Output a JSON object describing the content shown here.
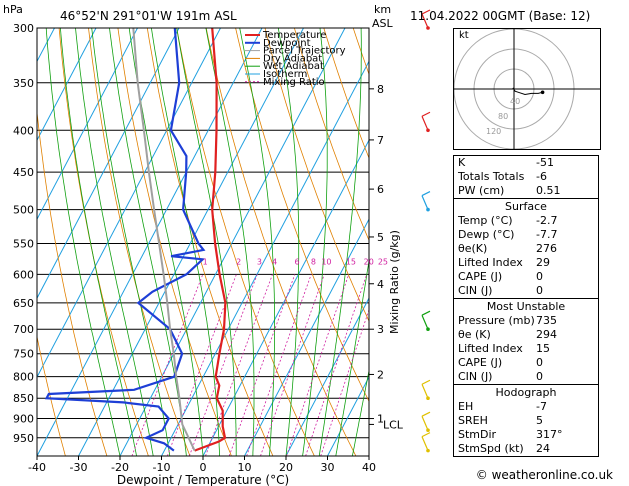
{
  "header": {
    "pressure_unit": "hPa",
    "location": "46°52'N  291°01'W  191m  ASL",
    "height_unit_line1": "km",
    "height_unit_line2": "ASL",
    "datetime": "11.04.2022  00GMT  (Base: 12)"
  },
  "hodograph": {
    "label": "kt",
    "ring_labels": [
      "40",
      "80",
      "120"
    ],
    "trace_kt": [
      [
        -1,
        1
      ],
      [
        1,
        -2
      ],
      [
        4,
        -3
      ],
      [
        10,
        -5
      ],
      [
        16,
        -4
      ],
      [
        22,
        -4
      ],
      [
        26,
        -3
      ]
    ]
  },
  "indices": {
    "rows": [
      {
        "label": "K",
        "value": "-51"
      },
      {
        "label": "Totals Totals",
        "value": "-6"
      },
      {
        "label": "PW (cm)",
        "value": "0.51"
      }
    ]
  },
  "surface": {
    "title": "Surface",
    "rows": [
      {
        "label": "Temp (°C)",
        "value": "-2.7"
      },
      {
        "label": "Dewp (°C)",
        "value": "-7.7"
      },
      {
        "label": "θe(K)",
        "value": "276"
      },
      {
        "label": "Lifted Index",
        "value": "29"
      },
      {
        "label": "CAPE (J)",
        "value": "0"
      },
      {
        "label": "CIN (J)",
        "value": "0"
      }
    ]
  },
  "most_unstable": {
    "title": "Most Unstable",
    "rows": [
      {
        "label": "Pressure (mb)",
        "value": "735"
      },
      {
        "label": "θe (K)",
        "value": "294"
      },
      {
        "label": "Lifted Index",
        "value": "15"
      },
      {
        "label": "CAPE (J)",
        "value": "0"
      },
      {
        "label": "CIN (J)",
        "value": "0"
      }
    ]
  },
  "hodograph_indices": {
    "title": "Hodograph",
    "rows": [
      {
        "label": "EH",
        "value": "-7"
      },
      {
        "label": "SREH",
        "value": "5"
      },
      {
        "label": "StmDir",
        "value": "317°"
      },
      {
        "label": "StmSpd (kt)",
        "value": "24"
      }
    ]
  },
  "copyright": "© weatheronline.co.uk",
  "colors": {
    "temperature": "#e02020",
    "dewpoint": "#1e3fd6",
    "parcel": "#a0a0a0",
    "dry_adiabat": "#e08000",
    "wet_adiabat": "#10a010",
    "isotherm": "#20a0e0",
    "mixing_ratio": "#d020a0"
  },
  "chart_data": {
    "type": "line",
    "title": "",
    "xlabel": "Dewpoint / Temperature (°C)",
    "ylabel_right": "Mixing Ratio (g/kg)",
    "xlim": [
      -40,
      40
    ],
    "ylim": [
      1000,
      300
    ],
    "x_ticks": [
      -40,
      -30,
      -20,
      -10,
      0,
      10,
      20,
      30,
      40
    ],
    "pressure_levels": [
      300,
      350,
      400,
      450,
      500,
      550,
      600,
      650,
      700,
      750,
      800,
      850,
      900,
      950
    ],
    "height_ticks": [
      {
        "label": "8",
        "p": 356
      },
      {
        "label": "7",
        "p": 411
      },
      {
        "label": "6",
        "p": 472
      },
      {
        "label": "5",
        "p": 540
      },
      {
        "label": "4",
        "p": 616
      },
      {
        "label": "3",
        "p": 700
      },
      {
        "label": "2",
        "p": 795
      },
      {
        "label": "1",
        "p": 900
      }
    ],
    "lcl_label": "LCL",
    "lcl_p": 915,
    "mixing_ratio_labels": [
      "1",
      "2",
      "3",
      "4",
      "6",
      "8",
      "10",
      "15",
      "20",
      "25"
    ],
    "mixing_ratio_values": [
      1,
      2,
      3,
      4,
      6,
      8,
      10,
      15,
      20,
      25
    ],
    "mixing_ratio_label_p": 590,
    "legend": [
      "Temperature",
      "Dewpoint",
      "Parcel Trajectory",
      "Dry Adiabat",
      "Wet Adiabat",
      "Isotherm",
      "Mixing Ratio"
    ],
    "series": [
      {
        "name": "Temperature",
        "points": [
          [
            985,
            -2.7
          ],
          [
            960,
            2
          ],
          [
            950,
            3
          ],
          [
            920,
            1
          ],
          [
            900,
            0
          ],
          [
            880,
            -1
          ],
          [
            850,
            -4
          ],
          [
            820,
            -5
          ],
          [
            800,
            -7
          ],
          [
            750,
            -9
          ],
          [
            700,
            -11
          ],
          [
            650,
            -14
          ],
          [
            600,
            -19
          ],
          [
            550,
            -24
          ],
          [
            500,
            -29
          ],
          [
            450,
            -33
          ],
          [
            400,
            -38
          ],
          [
            350,
            -44
          ],
          [
            300,
            -52
          ]
        ]
      },
      {
        "name": "Dewpoint",
        "points": [
          [
            985,
            -7.7
          ],
          [
            965,
            -11
          ],
          [
            950,
            -16
          ],
          [
            930,
            -13
          ],
          [
            900,
            -13
          ],
          [
            870,
            -17
          ],
          [
            860,
            -26
          ],
          [
            850,
            -45
          ],
          [
            840,
            -45
          ],
          [
            830,
            -25
          ],
          [
            800,
            -17
          ],
          [
            750,
            -18
          ],
          [
            700,
            -24
          ],
          [
            650,
            -35
          ],
          [
            630,
            -33
          ],
          [
            600,
            -27
          ],
          [
            575,
            -25
          ],
          [
            570,
            -33
          ],
          [
            560,
            -26
          ],
          [
            550,
            -28
          ],
          [
            500,
            -36
          ],
          [
            450,
            -40
          ],
          [
            430,
            -42
          ],
          [
            400,
            -49
          ],
          [
            350,
            -53
          ],
          [
            300,
            -61
          ]
        ]
      },
      {
        "name": "Parcel Trajectory",
        "points": [
          [
            985,
            -2.7
          ],
          [
            915,
            -9
          ],
          [
            850,
            -13
          ],
          [
            800,
            -16.5
          ],
          [
            750,
            -20
          ],
          [
            700,
            -24
          ],
          [
            650,
            -28
          ],
          [
            600,
            -32.5
          ],
          [
            550,
            -37.5
          ],
          [
            500,
            -43
          ],
          [
            450,
            -49
          ],
          [
            400,
            -55.5
          ],
          [
            350,
            -63
          ],
          [
            300,
            -71
          ]
        ]
      }
    ],
    "wind_barbs": [
      {
        "p": 985,
        "color": "#e0c000"
      },
      {
        "p": 930,
        "color": "#e0c000"
      },
      {
        "p": 850,
        "color": "#e0c000"
      },
      {
        "p": 700,
        "color": "#10a010"
      },
      {
        "p": 500,
        "color": "#20a0e0"
      },
      {
        "p": 400,
        "color": "#e02020"
      },
      {
        "p": 300,
        "color": "#e02020"
      }
    ]
  }
}
